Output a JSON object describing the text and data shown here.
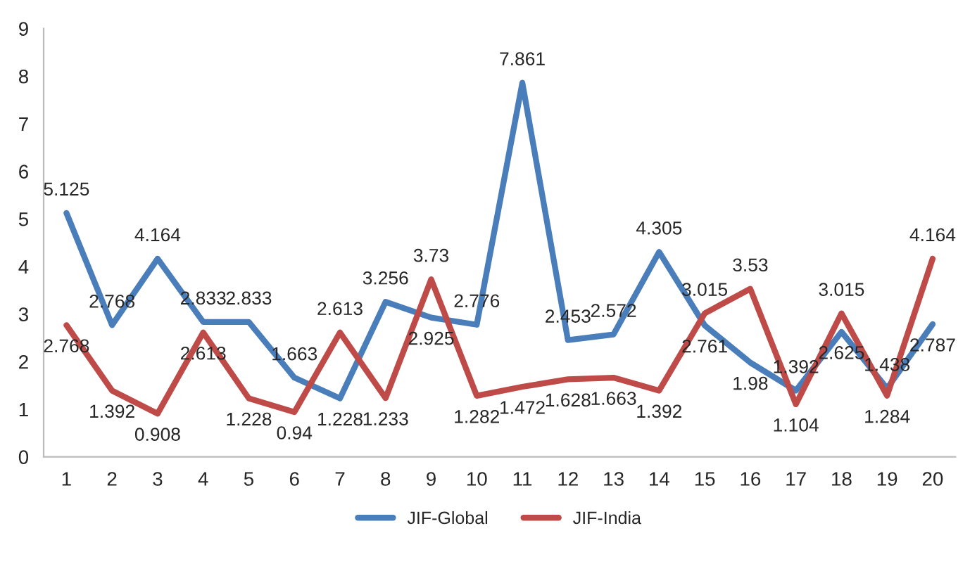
{
  "chart_data": {
    "type": "line",
    "categories": [
      "1",
      "2",
      "3",
      "4",
      "5",
      "6",
      "7",
      "8",
      "9",
      "10",
      "11",
      "12",
      "13",
      "14",
      "15",
      "16",
      "17",
      "18",
      "19",
      "20"
    ],
    "series": [
      {
        "name": "JIF-Global",
        "color": "#4a7ebb",
        "values": [
          5.125,
          2.768,
          4.164,
          2.833,
          2.833,
          1.663,
          1.228,
          3.256,
          2.925,
          2.776,
          7.861,
          2.453,
          2.572,
          4.305,
          2.761,
          1.98,
          1.392,
          2.625,
          1.438,
          2.787
        ]
      },
      {
        "name": "JIF-India",
        "color": "#be4b48",
        "values": [
          2.768,
          1.392,
          0.908,
          2.613,
          1.228,
          0.94,
          2.613,
          1.233,
          3.73,
          1.282,
          1.472,
          1.628,
          1.663,
          1.392,
          3.015,
          3.53,
          1.104,
          3.015,
          1.284,
          4.164
        ]
      }
    ],
    "ylim": [
      0,
      9
    ],
    "yticks": [
      0,
      1,
      2,
      3,
      4,
      5,
      6,
      7,
      8,
      9
    ],
    "grid": false,
    "legend": "bottom",
    "data_labels": true,
    "marker": "none",
    "line_style": "solid"
  }
}
